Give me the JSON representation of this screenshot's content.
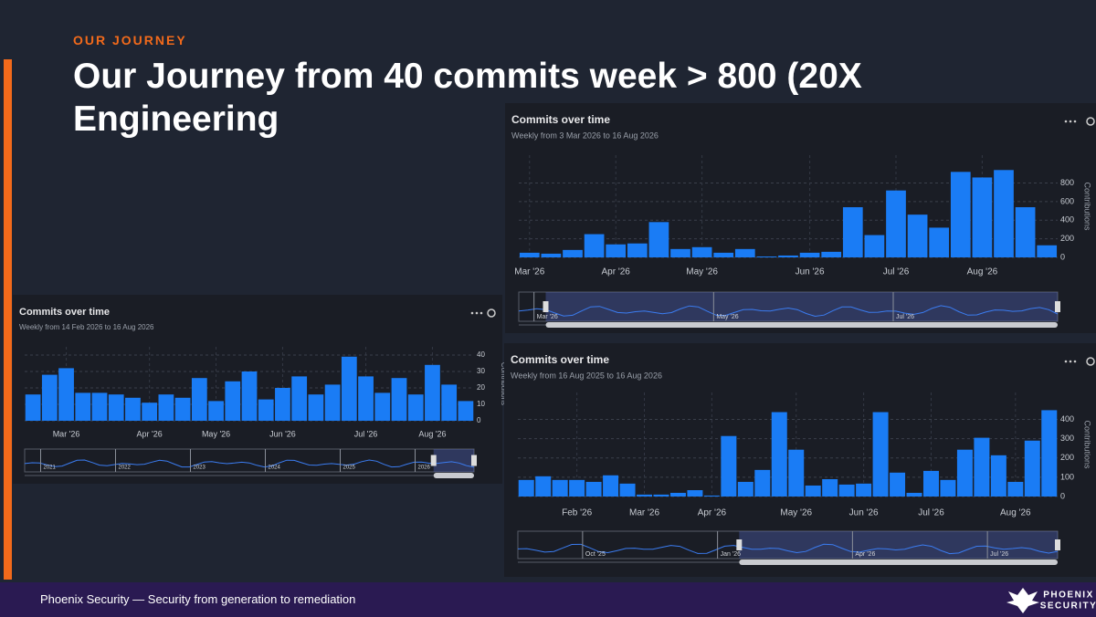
{
  "slide": {
    "kicker": "OUR JOURNEY",
    "title": "Our Journey from 40 commits week > 800 (20X Engineering",
    "footer": "Phoenix Security — Security from generation to remediation",
    "logo_lines": [
      "PHOENIX",
      "SECURITY"
    ]
  },
  "chart_data": [
    {
      "type": "bar",
      "title": "Commits over time",
      "subtitle": "Weekly from 3 Mar 2026 to 16 Aug 2026",
      "y_label": "Contributions",
      "categories": [
        "Mar '26",
        null,
        null,
        null,
        "Apr '26",
        null,
        null,
        null,
        "May '26",
        null,
        null,
        null,
        null,
        "Jun '26",
        null,
        null,
        null,
        "Jul '26",
        null,
        null,
        null,
        "Aug '26",
        null,
        null,
        null
      ],
      "values": [
        50,
        40,
        80,
        250,
        140,
        150,
        380,
        90,
        110,
        50,
        90,
        10,
        20,
        50,
        60,
        540,
        240,
        720,
        460,
        320,
        920,
        860,
        940,
        540,
        130
      ],
      "color": "#1a7cf5",
      "ylim": [
        0,
        1100
      ],
      "yticks": [
        0,
        200,
        400,
        600,
        800
      ],
      "grid": true,
      "navigator_labels": [
        "Mar '26",
        "May '26",
        "Jul '26"
      ]
    },
    {
      "type": "bar",
      "title": "Commits over time",
      "subtitle": "Weekly from 14 Feb 2026 to 16 Aug 2026",
      "y_label": "Contributions",
      "categories": [
        null,
        null,
        "Mar '26",
        null,
        null,
        null,
        null,
        "Apr '26",
        null,
        null,
        null,
        "May '26",
        null,
        null,
        null,
        "Jun '26",
        null,
        null,
        null,
        null,
        "Jul '26",
        null,
        null,
        null,
        "Aug '26",
        null,
        null
      ],
      "values": [
        16,
        28,
        32,
        17,
        17,
        16,
        14,
        11,
        16,
        14,
        26,
        12,
        24,
        30,
        13,
        20,
        27,
        16,
        22,
        39,
        27,
        17,
        26,
        16,
        34,
        22,
        12
      ],
      "color": "#1a7cf5",
      "ylim": [
        0,
        45
      ],
      "yticks": [
        0,
        10,
        20,
        30,
        40
      ],
      "grid": true,
      "navigator_labels": [
        "2021",
        "2022",
        "2023",
        "2024",
        "2025",
        "2026"
      ]
    },
    {
      "type": "bar",
      "title": "Commits over time",
      "subtitle": "Weekly from 16 Aug 2025 to 16 Aug 2026",
      "y_label": "Contributions",
      "categories": [
        null,
        null,
        null,
        "Feb '26",
        null,
        null,
        null,
        "Mar '26",
        null,
        null,
        null,
        "Apr '26",
        null,
        null,
        null,
        null,
        "May '26",
        null,
        null,
        null,
        "Jun '26",
        null,
        null,
        null,
        "Jul '26",
        null,
        null,
        null,
        null,
        "Aug '26",
        null,
        null
      ],
      "values": [
        86,
        105,
        86,
        86,
        76,
        110,
        67,
        10,
        10,
        19,
        33,
        5,
        314,
        76,
        138,
        438,
        243,
        57,
        90,
        62,
        67,
        438,
        124,
        19,
        133,
        86,
        243,
        305,
        214,
        76,
        290,
        448
      ],
      "color": "#1a7cf5",
      "ylim": [
        0,
        540
      ],
      "yticks": [
        0,
        100,
        200,
        300,
        400
      ],
      "grid": true,
      "navigator_labels": [
        "Oct '25",
        "Jan '26",
        "Apr '26",
        "Jul '26"
      ]
    }
  ]
}
